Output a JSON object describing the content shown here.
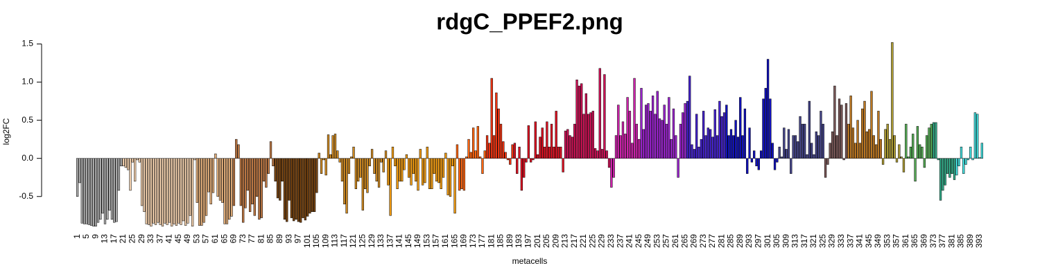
{
  "chart_data": {
    "type": "bar",
    "title": "rdgC_PPEF2.png",
    "x_label": "metacells",
    "y_label": "log2FC",
    "categories": [
      "1",
      null,
      null,
      null,
      "5",
      null,
      null,
      null,
      "9",
      null,
      null,
      null,
      "13",
      null,
      null,
      null,
      "17",
      null,
      null,
      null,
      "21",
      null,
      null,
      null,
      "25",
      null,
      null,
      null,
      "29",
      null,
      null,
      null,
      "33",
      null,
      null,
      null,
      "37",
      null,
      null,
      null,
      "41",
      null,
      null,
      null,
      "45",
      null,
      null,
      null,
      "49",
      null,
      null,
      null,
      "53",
      null,
      null,
      null,
      "57",
      null,
      null,
      null,
      "61",
      null,
      null,
      null,
      "65",
      null,
      null,
      null,
      "69",
      null,
      null,
      null,
      "73",
      null,
      null,
      null,
      "77",
      null,
      null,
      null,
      "81",
      null,
      null,
      null,
      "85",
      null,
      null,
      null,
      "89",
      null,
      null,
      null,
      "93",
      null,
      null,
      null,
      "97",
      null,
      null,
      null,
      "101",
      null,
      null,
      null,
      "105",
      null,
      null,
      null,
      "109",
      null,
      null,
      null,
      "113",
      null,
      null,
      null,
      "117",
      null,
      null,
      null,
      "121",
      null,
      null,
      null,
      "125",
      null,
      null,
      null,
      "129",
      null,
      null,
      null,
      "133",
      null,
      null,
      null,
      "137",
      null,
      null,
      null,
      "141",
      null,
      null,
      null,
      "145",
      null,
      null,
      null,
      "149",
      null,
      null,
      null,
      "153",
      null,
      null,
      null,
      "157",
      null,
      null,
      null,
      "161",
      null,
      null,
      null,
      "165",
      null,
      null,
      null,
      "169",
      null,
      null,
      null,
      "173",
      null,
      null,
      null,
      "177",
      null,
      null,
      null,
      "181",
      null,
      null,
      null,
      "185",
      null,
      null,
      null,
      "189",
      null,
      null,
      null,
      "193",
      null,
      null,
      null,
      "197",
      null,
      null,
      null,
      "201",
      null,
      null,
      null,
      "205",
      null,
      null,
      null,
      "209",
      null,
      null,
      null,
      "213",
      null,
      null,
      null,
      "217",
      null,
      null,
      null,
      "221",
      null,
      null,
      null,
      "225",
      null,
      null,
      null,
      "229",
      null,
      null,
      null,
      "233",
      null,
      null,
      null,
      "237",
      null,
      null,
      null,
      "241",
      null,
      null,
      null,
      "245",
      null,
      null,
      null,
      "249",
      null,
      null,
      null,
      "253",
      null,
      null,
      null,
      "257",
      null,
      null,
      null,
      "261",
      null,
      null,
      null,
      "265",
      null,
      null,
      null,
      "269",
      null,
      null,
      null,
      "273",
      null,
      null,
      null,
      "277",
      null,
      null,
      null,
      "281",
      null,
      null,
      null,
      "285",
      null,
      null,
      null,
      "289",
      null,
      null,
      null,
      "293",
      null,
      null,
      null,
      "297",
      null,
      null,
      null,
      "301",
      null,
      null,
      null,
      "305",
      null,
      null,
      null,
      "309",
      null,
      null,
      null,
      "313",
      null,
      null,
      null,
      "317",
      null,
      null,
      null,
      "321",
      null,
      null,
      null,
      "325",
      null,
      null,
      null,
      "329",
      null,
      null,
      null,
      "333",
      null,
      null,
      null,
      "337",
      null,
      null,
      null,
      "341",
      null,
      null,
      null,
      "345",
      null,
      null,
      null,
      "349",
      null,
      null,
      null,
      "353",
      null,
      null,
      null,
      "357",
      null,
      null,
      null,
      "361",
      null,
      null,
      null,
      "365",
      null,
      null,
      null,
      "369",
      null,
      null,
      null,
      "373",
      null,
      null,
      null,
      "377",
      null,
      null,
      null,
      "381",
      null,
      null,
      null,
      "385",
      null,
      null,
      null,
      "389",
      null,
      null,
      null,
      "393",
      null
    ],
    "values": [
      -0.5,
      -0.32,
      -0.85,
      -0.86,
      -0.86,
      -0.87,
      -0.88,
      -0.89,
      -0.89,
      -0.84,
      -0.8,
      -0.72,
      -0.86,
      -0.8,
      -0.68,
      -0.8,
      -0.84,
      -0.83,
      -0.42,
      -0.1,
      -0.1,
      -0.12,
      -0.15,
      -0.42,
      -0.05,
      -0.3,
      -0.02,
      -0.05,
      -0.62,
      -0.7,
      -0.86,
      -0.87,
      -0.89,
      -0.85,
      -0.87,
      -0.84,
      -0.87,
      -0.89,
      -0.85,
      -0.87,
      -0.84,
      -0.89,
      -0.86,
      -0.88,
      -0.85,
      -0.87,
      -0.82,
      -0.88,
      -0.85,
      -0.75,
      -0.89,
      -0.02,
      -0.58,
      -0.88,
      -0.88,
      -0.84,
      -0.75,
      -0.44,
      -0.6,
      -0.45,
      0.06,
      -0.5,
      -0.55,
      -0.58,
      -0.86,
      -0.86,
      -0.8,
      -0.76,
      -0.62,
      0.25,
      0.18,
      -0.62,
      -0.84,
      -0.65,
      -0.42,
      -0.7,
      -0.6,
      -0.75,
      -0.5,
      -0.8,
      -0.78,
      -0.3,
      -0.38,
      -0.2,
      0.22,
      -0.1,
      -0.3,
      -0.52,
      -0.55,
      -0.3,
      -0.8,
      -0.83,
      -0.55,
      -0.78,
      -0.82,
      -0.8,
      -0.83,
      -0.84,
      -0.78,
      -0.81,
      -0.76,
      -0.72,
      -0.7,
      -0.7,
      -0.45,
      0.07,
      -0.2,
      -0.02,
      -0.22,
      0.31,
      0.05,
      0.3,
      0.32,
      0.1,
      -0.05,
      -0.3,
      -0.6,
      -0.72,
      -0.2,
      0.02,
      0.15,
      -0.4,
      -0.3,
      -0.25,
      -0.68,
      -0.4,
      -0.45,
      -0.1,
      0.12,
      -0.2,
      -0.3,
      -0.38,
      -0.05,
      -0.18,
      0.1,
      -0.35,
      -0.75,
      0.15,
      -0.1,
      -0.4,
      -0.3,
      -0.3,
      -0.15,
      0.05,
      -0.25,
      -0.35,
      -0.2,
      -0.3,
      -0.42,
      0.12,
      -0.35,
      -0.32,
      0.15,
      -0.4,
      -0.4,
      -0.2,
      -0.3,
      -0.32,
      -0.4,
      -0.25,
      0.07,
      -0.48,
      -0.5,
      -0.1,
      -0.72,
      0.18,
      -0.42,
      -0.4,
      -0.42,
      0.02,
      0.25,
      0.08,
      0.4,
      0.1,
      0.42,
      0.02,
      -0.2,
      0.1,
      0.3,
      0.2,
      1.05,
      0.3,
      0.86,
      0.65,
      0.45,
      0.22,
      0.08,
      -0.02,
      -0.08,
      0.18,
      0.2,
      -0.2,
      0.15,
      -0.42,
      -0.25,
      -0.05,
      0.43,
      -0.05,
      -0.02,
      0.48,
      0.05,
      0.28,
      0.4,
      0.15,
      0.48,
      0.15,
      0.45,
      0.15,
      0.62,
      0.15,
      0.15,
      -0.18,
      0.36,
      0.38,
      0.3,
      0.28,
      0.45,
      1.03,
      0.95,
      0.98,
      0.58,
      0.85,
      0.58,
      0.6,
      0.62,
      0.13,
      0.1,
      1.18,
      0.12,
      1.1,
      0.1,
      -0.12,
      -0.38,
      -0.25,
      0.3,
      0.7,
      0.3,
      0.48,
      0.32,
      0.8,
      0.62,
      0.2,
      1.05,
      0.45,
      0.25,
      0.92,
      0.38,
      0.7,
      0.72,
      0.62,
      0.82,
      0.58,
      0.88,
      0.52,
      0.5,
      0.7,
      0.45,
      0.8,
      0.25,
      0.65,
      0.3,
      -0.25,
      0.45,
      0.6,
      0.72,
      0.75,
      1.08,
      0.18,
      0.12,
      0.58,
      0.15,
      0.25,
      0.62,
      0.3,
      0.4,
      0.38,
      0.28,
      0.64,
      0.3,
      0.75,
      0.55,
      0.6,
      0.7,
      0.3,
      0.38,
      0.3,
      0.5,
      0.28,
      0.8,
      0.3,
      0.65,
      -0.2,
      0.4,
      -0.05,
      0.1,
      -0.1,
      -0.15,
      0.1,
      0.78,
      0.92,
      1.3,
      0.78,
      0.2,
      -0.15,
      -0.05,
      0.15,
      0.02,
      0.4,
      0.12,
      0.38,
      -0.2,
      0.3,
      0.3,
      0.22,
      0.55,
      0.45,
      0.45,
      0.05,
      0.75,
      0.2,
      0.05,
      0.35,
      0.3,
      0.62,
      0.45,
      -0.25,
      -0.08,
      0.2,
      0.35,
      0.95,
      0.3,
      0.78,
      0.7,
      -0.02,
      0.72,
      0.45,
      0.82,
      0.4,
      0.2,
      0.5,
      0.2,
      0.65,
      0.75,
      0.35,
      0.38,
      0.88,
      0.3,
      0.18,
      0.62,
      0.25,
      -0.08,
      0.38,
      0.45,
      0.25,
      1.52,
      0.3,
      -0.05,
      0.18,
      0.02,
      -0.18,
      0.45,
      0.02,
      0.15,
      0.32,
      -0.3,
      0.42,
      0.18,
      0.15,
      -0.12,
      0.3,
      0.4,
      0.45,
      0.47,
      0.47,
      -0.02,
      -0.55,
      -0.42,
      -0.35,
      -0.2,
      -0.25,
      -0.2,
      -0.28,
      -0.22,
      -0.1,
      0.15,
      -0.2,
      -0.08,
      -0.02,
      0.15,
      -0.02,
      0.6,
      0.58,
      0.01,
      0.2
    ],
    "colors": [
      "#aaa",
      "#aaa",
      "#aaa",
      "#aaa",
      "#aaa",
      "#aaa",
      "#aaa",
      "#aaa",
      "#aaa",
      "#aaa",
      "#aaa",
      "#aaa",
      "#aaa",
      "#aaa",
      "#aaa",
      "#aaa",
      "#aaa",
      "#aaa",
      "#aaa",
      "#aaa",
      "#eca",
      "#eca",
      "#eca",
      "#eca",
      "#eca",
      "#eca",
      "#eca",
      "#eca",
      "#eca",
      "#eca",
      "#eca",
      "#eca",
      "#eca",
      "#eca",
      "#eca",
      "#eca",
      "#eca",
      "#eca",
      "#eca",
      "#eca",
      "#eca",
      "#eca",
      "#eca",
      "#eca",
      "#eca",
      "#eca",
      "#eca",
      "#eca",
      "#eca",
      "#eca",
      "#eca",
      "#eca",
      "#da7",
      "#da7",
      "#da7",
      "#da7",
      "#da7",
      "#da7",
      "#da7",
      "#da7",
      "#da7",
      "#da7",
      "#da7",
      "#da7",
      "#da7",
      "#da7",
      "#da7",
      "#da7",
      "#b74",
      "#b74",
      "#b74",
      "#b74",
      "#b74",
      "#b74",
      "#b74",
      "#b74",
      "#b74",
      "#b74",
      "#b74",
      "#b74",
      "#b74",
      "#b74",
      "#b74",
      "#b74",
      "#b74",
      "#b74",
      "#741",
      "#741",
      "#741",
      "#741",
      "#741",
      "#741",
      "#741",
      "#741",
      "#741",
      "#741",
      "#741",
      "#741",
      "#741",
      "#741",
      "#741",
      "#741",
      "#741",
      "#741",
      "#741",
      "#c82",
      "#c82",
      "#c82",
      "#c82",
      "#c82",
      "#c82",
      "#c82",
      "#c82",
      "#c82",
      "#c82",
      "#c82",
      "#c82",
      "#c82",
      "#c82",
      "#c82",
      "#c82",
      "#c82",
      "#c82",
      "#c82",
      "#c82",
      "#c82",
      "#c82",
      "#c82",
      "#c82",
      "#c82",
      "#c82",
      "#c82",
      "#c82",
      "#c82",
      "#c82",
      "#e91",
      "#e91",
      "#e91",
      "#e91",
      "#e91",
      "#e91",
      "#e91",
      "#e91",
      "#e91",
      "#e91",
      "#e91",
      "#e91",
      "#e91",
      "#e91",
      "#e91",
      "#e91",
      "#e91",
      "#e91",
      "#e91",
      "#e91",
      "#e91",
      "#e91",
      "#e91",
      "#e91",
      "#e91",
      "#e91",
      "#e91",
      "#e91",
      "#e91",
      "#e91",
      "#f61",
      "#f61",
      "#f61",
      "#f61",
      "#f61",
      "#f61",
      "#f61",
      "#f61",
      "#f61",
      "#f61",
      "#f61",
      "#f61",
      "#f61",
      "#e31",
      "#e31",
      "#e31",
      "#e31",
      "#e31",
      "#e31",
      "#e31",
      "#e31",
      "#e31",
      "#e31",
      "#e31",
      "#e31",
      "#d12",
      "#d12",
      "#d12",
      "#d12",
      "#d12",
      "#d12",
      "#d12",
      "#d12",
      "#d12",
      "#d12",
      "#d12",
      "#d12",
      "#d12",
      "#d12",
      "#d12",
      "#d12",
      "#d12",
      "#d12",
      "#d12",
      "#d12",
      "#d12",
      "#d12",
      "#c15",
      "#c15",
      "#c15",
      "#c15",
      "#c15",
      "#c15",
      "#c15",
      "#c15",
      "#c15",
      "#c15",
      "#c15",
      "#c15",
      "#c15",
      "#c15",
      "#c15",
      "#c15",
      "#c15",
      "#c15",
      "#c15",
      "#c15",
      "#c2a",
      "#c2a",
      "#c2a",
      "#c2a",
      "#c2a",
      "#c2a",
      "#c2a",
      "#c2a",
      "#c2a",
      "#c2a",
      "#c2a",
      "#c2a",
      "#c2a",
      "#92c",
      "#92c",
      "#92c",
      "#92c",
      "#92c",
      "#92c",
      "#92c",
      "#92c",
      "#92c",
      "#92c",
      "#92c",
      "#92c",
      "#92c",
      "#92c",
      "#92c",
      "#92c",
      "#92c",
      "#92c",
      "#92c",
      "#92c",
      "#42c",
      "#42c",
      "#42c",
      "#42c",
      "#42c",
      "#42c",
      "#42c",
      "#42c",
      "#42c",
      "#42c",
      "#42c",
      "#42c",
      "#42c",
      "#42c",
      "#42c",
      "#42c",
      "#42c",
      "#11b",
      "#11b",
      "#11b",
      "#11b",
      "#11b",
      "#11b",
      "#11b",
      "#11b",
      "#11b",
      "#11b",
      "#11b",
      "#11b",
      "#11b",
      "#11b",
      "#11b",
      "#11b",
      "#11b",
      "#11b",
      "#11b",
      "#11b",
      "#11b",
      "#11b",
      "#11b",
      "#448",
      "#448",
      "#448",
      "#448",
      "#448",
      "#448",
      "#448",
      "#448",
      "#448",
      "#448",
      "#448",
      "#448",
      "#448",
      "#448",
      "#448",
      "#448",
      "#448",
      "#448",
      "#448",
      "#448",
      "#755",
      "#755",
      "#755",
      "#755",
      "#755",
      "#755",
      "#755",
      "#755",
      "#755",
      "#755",
      "#b72",
      "#b72",
      "#b72",
      "#b72",
      "#b72",
      "#b72",
      "#b72",
      "#b72",
      "#b72",
      "#b72",
      "#b72",
      "#b72",
      "#b72",
      "#b72",
      "#b72",
      "#a93",
      "#a93",
      "#a93",
      "#a93",
      "#a93",
      "#a93",
      "#a93",
      "#a93",
      "#a93",
      "#a93",
      "#5a5",
      "#5a5",
      "#5a5",
      "#5a5",
      "#5a5",
      "#5a5",
      "#5a5",
      "#5a5",
      "#5a5",
      "#5a5",
      "#5a5",
      "#5a5",
      "#3a8",
      "#3a8",
      "#3a8",
      "#3a8",
      "#3a8",
      "#3a8",
      "#3a8",
      "#3a8",
      "#3a8",
      "#3a8",
      "#4dd",
      "#4dd",
      "#4dd",
      "#4dd",
      "#4dd",
      "#4dd",
      "#4dd",
      "#4dd",
      "#4dd",
      "#4dd",
      "#4dd",
      "#4dd"
    ],
    "ylim": [
      -0.92,
      1.55
    ],
    "yticks": [
      -0.5,
      {
        "value": 0,
        "label": "0.0"
      },
      0.5,
      {
        "value": 1,
        "label": "1.0"
      },
      1.5
    ],
    "grid": false
  }
}
